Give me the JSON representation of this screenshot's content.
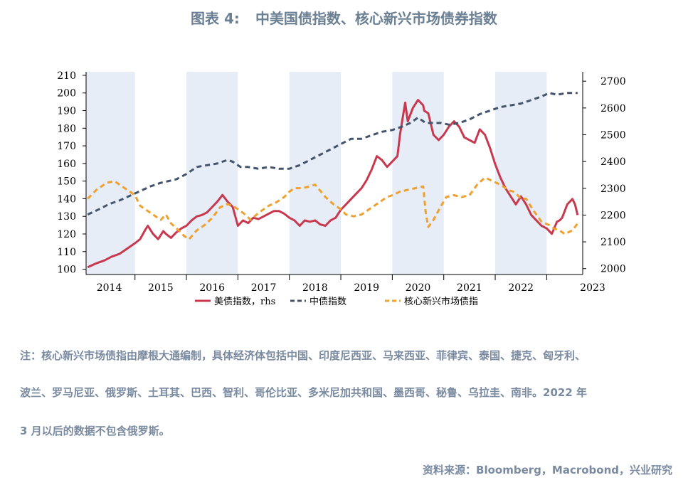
{
  "title": {
    "label": "图表 4:",
    "text": "中美国债指数、核心新兴市场债券指数"
  },
  "chart_data": {
    "type": "line",
    "x_tick_labels": [
      "2014",
      "2015",
      "2016",
      "2017",
      "2018",
      "2019",
      "2020",
      "2021",
      "2022",
      "2023"
    ],
    "y_left": {
      "ticks": [
        100,
        110,
        120,
        130,
        140,
        150,
        160,
        170,
        180,
        190,
        200,
        210
      ],
      "range": [
        97,
        212
      ]
    },
    "y_right": {
      "ticks": [
        2000,
        2100,
        2200,
        2300,
        2400,
        2500,
        2600,
        2700
      ],
      "range": [
        1978,
        2735
      ]
    },
    "x_range": [
      2013.55,
      2023.2
    ],
    "shaded_periods": [
      [
        2013.55,
        2014.5
      ],
      [
        2015.5,
        2016.5
      ],
      [
        2017.5,
        2018.5
      ],
      [
        2019.5,
        2020.5
      ],
      [
        2021.5,
        2022.5
      ]
    ],
    "grid": false,
    "legend_position": "bottom",
    "colors": {
      "us": "#c8394f",
      "cn": "#44546a",
      "em": "#f0a030",
      "shade": "#e6edf6"
    },
    "series": [
      {
        "name": "美债指数，rhs",
        "axis": "right",
        "style": "solid",
        "x": [
          2013.58,
          2013.75,
          2013.9,
          2014.05,
          2014.2,
          2014.35,
          2014.5,
          2014.6,
          2014.7,
          2014.75,
          2014.85,
          2014.95,
          2015.05,
          2015.1,
          2015.2,
          2015.3,
          2015.4,
          2015.5,
          2015.6,
          2015.7,
          2015.8,
          2015.9,
          2016.0,
          2016.1,
          2016.2,
          2016.3,
          2016.4,
          2016.5,
          2016.6,
          2016.7,
          2016.8,
          2016.9,
          2017.0,
          2017.1,
          2017.2,
          2017.3,
          2017.4,
          2017.5,
          2017.6,
          2017.7,
          2017.8,
          2017.9,
          2018.0,
          2018.1,
          2018.2,
          2018.3,
          2018.4,
          2018.5,
          2018.6,
          2018.7,
          2018.8,
          2018.9,
          2019.0,
          2019.1,
          2019.2,
          2019.3,
          2019.4,
          2019.5,
          2019.6,
          2019.65,
          2019.7,
          2019.75,
          2019.8,
          2019.9,
          2020.0,
          2020.1,
          2020.12,
          2020.2,
          2020.3,
          2020.4,
          2020.5,
          2020.6,
          2020.7,
          2020.8,
          2020.9,
          2021.0,
          2021.1,
          2021.2,
          2021.3,
          2021.4,
          2021.5,
          2021.6,
          2021.7,
          2021.8,
          2021.9,
          2022.0,
          2022.1,
          2022.2,
          2022.3,
          2022.4,
          2022.5,
          2022.6,
          2022.7,
          2022.75,
          2022.8,
          2022.9,
          2023.0,
          2023.05,
          2023.1
        ],
        "values": [
          2005,
          2020,
          2030,
          2045,
          2055,
          2075,
          2095,
          2110,
          2145,
          2160,
          2130,
          2110,
          2140,
          2130,
          2115,
          2135,
          2150,
          2160,
          2180,
          2195,
          2200,
          2210,
          2230,
          2250,
          2275,
          2250,
          2230,
          2160,
          2180,
          2170,
          2190,
          2185,
          2195,
          2205,
          2215,
          2215,
          2205,
          2190,
          2180,
          2160,
          2180,
          2175,
          2180,
          2165,
          2160,
          2180,
          2190,
          2220,
          2240,
          2260,
          2280,
          2300,
          2330,
          2370,
          2420,
          2405,
          2380,
          2400,
          2420,
          2500,
          2560,
          2620,
          2550,
          2600,
          2630,
          2610,
          2590,
          2580,
          2500,
          2480,
          2500,
          2530,
          2550,
          2530,
          2490,
          2480,
          2470,
          2520,
          2500,
          2450,
          2390,
          2340,
          2300,
          2270,
          2240,
          2270,
          2240,
          2200,
          2180,
          2160,
          2150,
          2130,
          2175,
          2180,
          2190,
          2240,
          2260,
          2240,
          2200
        ]
      },
      {
        "name": "中债指数",
        "axis": "left",
        "style": "dashed",
        "x": [
          2013.58,
          2013.8,
          2014.0,
          2014.2,
          2014.5,
          2014.8,
          2015.0,
          2015.3,
          2015.5,
          2015.7,
          2015.9,
          2016.1,
          2016.3,
          2016.4,
          2016.55,
          2016.7,
          2016.9,
          2017.1,
          2017.3,
          2017.5,
          2017.7,
          2017.9,
          2018.1,
          2018.3,
          2018.5,
          2018.7,
          2018.9,
          2019.1,
          2019.3,
          2019.5,
          2019.7,
          2019.85,
          2020.0,
          2020.15,
          2020.3,
          2020.45,
          2020.6,
          2020.8,
          2021.0,
          2021.2,
          2021.4,
          2021.6,
          2021.8,
          2022.0,
          2022.2,
          2022.4,
          2022.55,
          2022.7,
          2022.9,
          2023.1
        ],
        "values": [
          131,
          134,
          137,
          139,
          143,
          147,
          149,
          151,
          154,
          158,
          159,
          160,
          162,
          161,
          158,
          158,
          157,
          158,
          157,
          157,
          159,
          162,
          165,
          168,
          171,
          174,
          174,
          176,
          178,
          179,
          181,
          183,
          186,
          183,
          183,
          183,
          182,
          183,
          185,
          188,
          190,
          192,
          193,
          194,
          196,
          198,
          200,
          199,
          200,
          200
        ]
      },
      {
        "name": "核心新兴市场债指",
        "axis": "left",
        "style": "dashed",
        "x": [
          2013.58,
          2013.75,
          2013.95,
          2014.1,
          2014.2,
          2014.3,
          2014.4,
          2014.5,
          2014.6,
          2014.75,
          2014.9,
          2015.0,
          2015.1,
          2015.2,
          2015.35,
          2015.45,
          2015.55,
          2015.7,
          2015.85,
          2016.0,
          2016.15,
          2016.3,
          2016.45,
          2016.5,
          2016.6,
          2016.75,
          2016.9,
          2017.1,
          2017.25,
          2017.4,
          2017.5,
          2017.6,
          2017.75,
          2017.9,
          2018.0,
          2018.2,
          2018.35,
          2018.5,
          2018.6,
          2018.75,
          2018.9,
          2019.0,
          2019.1,
          2019.25,
          2019.4,
          2019.5,
          2019.65,
          2019.8,
          2019.95,
          2020.1,
          2020.15,
          2020.2,
          2020.3,
          2020.45,
          2020.55,
          2020.7,
          2020.85,
          2021.0,
          2021.15,
          2021.3,
          2021.45,
          2021.6,
          2021.75,
          2021.85,
          2021.9,
          2022.0,
          2022.1,
          2022.25,
          2022.4,
          2022.55,
          2022.65,
          2022.75,
          2022.85,
          2023.0,
          2023.1
        ],
        "values": [
          140,
          145,
          149,
          150,
          148,
          146,
          144,
          142,
          136,
          133,
          130,
          128,
          131,
          126,
          122,
          119,
          117,
          122,
          125,
          129,
          135,
          137,
          135,
          134,
          132,
          128,
          132,
          136,
          138,
          141,
          144,
          146,
          146,
          147,
          148,
          141,
          137,
          134,
          131,
          130,
          131,
          133,
          135,
          138,
          141,
          142,
          144,
          145,
          146,
          147,
          132,
          124,
          128,
          136,
          141,
          142,
          141,
          142,
          148,
          152,
          150,
          148,
          145,
          144,
          143,
          140,
          140,
          133,
          127,
          125,
          123,
          122,
          120,
          122,
          126
        ]
      }
    ]
  },
  "note": {
    "line1": "注：核心新兴市场债指由摩根大通编制，具体经济体包括中国、印度尼西亚、马来西亚、菲律宾、泰国、捷克、匈牙利、",
    "line2": "波兰、罗马尼亚、俄罗斯、土耳其、巴西、智利、哥伦比亚、多米尼加共和国、墨西哥、秘鲁、乌拉圭、南非。2022 年",
    "line3": "3 月以后的数据不包含俄罗斯。"
  },
  "source": "资料来源：Bloomberg，Macrobond，兴业研究"
}
